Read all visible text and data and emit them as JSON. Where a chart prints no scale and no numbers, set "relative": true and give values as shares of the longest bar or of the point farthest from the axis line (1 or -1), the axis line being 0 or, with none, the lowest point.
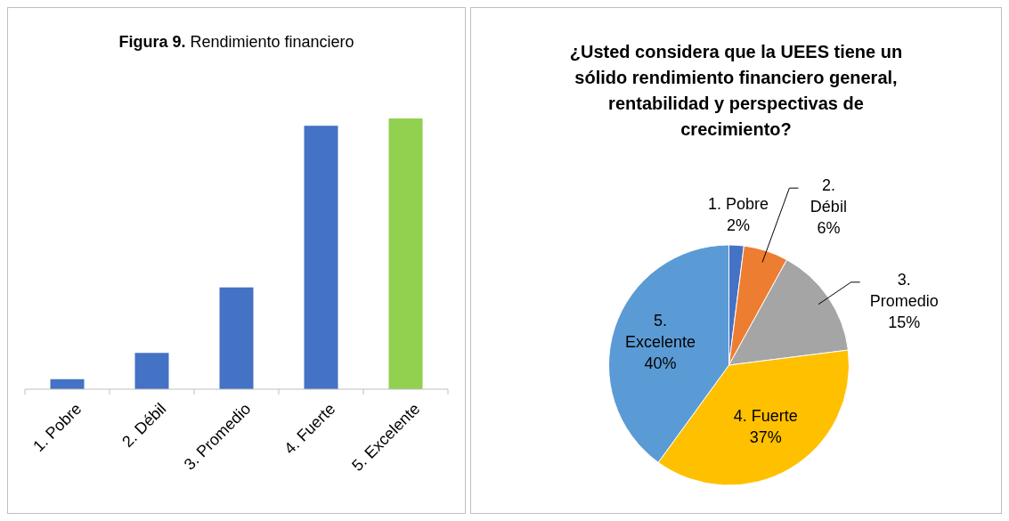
{
  "chart_data": [
    {
      "type": "bar",
      "title": "Figura 9. Rendimiento financiero",
      "categories": [
        "1. Pobre",
        "2. Débil",
        "3. Promedio",
        "4. Fuerte",
        "5. Excelente"
      ],
      "values": [
        0.037,
        0.134,
        0.376,
        0.973,
        1
      ],
      "colors": [
        "#4472c4",
        "#4472c4",
        "#4472c4",
        "#4472c4",
        "#92d050"
      ],
      "relative": true,
      "grid": false
    },
    {
      "type": "pie",
      "title": "¿Usted considera que la UEES tiene un sólido rendimiento financiero general, rentabilidad y perspectivas de crecimiento?",
      "categories": [
        "1. Pobre",
        "2. Débil",
        "3. Promedio",
        "4. Fuerte",
        "5. Excelente"
      ],
      "values": [
        2,
        6,
        15,
        37,
        40
      ],
      "colors": [
        "#4472c4",
        "#ed7d31",
        "#a5a5a5",
        "#ffc000",
        "#5b9bd5"
      ],
      "value_labels": [
        "2%",
        "6%",
        "15%",
        "37%",
        "40%"
      ]
    }
  ]
}
